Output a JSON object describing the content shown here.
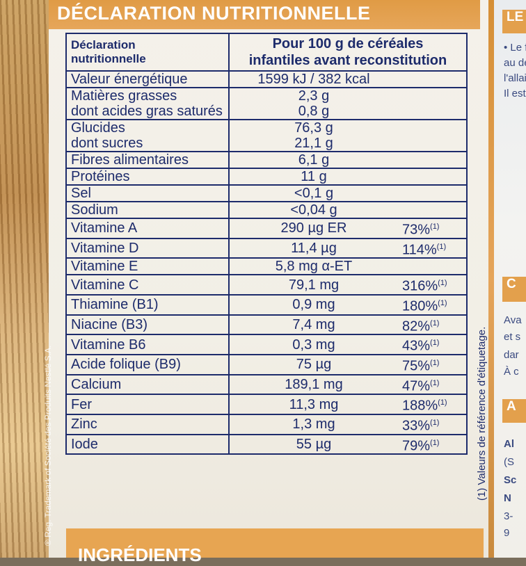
{
  "header": {
    "title": "DÉCLARATION NUTRITIONNELLE"
  },
  "table": {
    "head_left": [
      "Déclaration",
      "nutritionnelle"
    ],
    "head_right": [
      "Pour 100 g de céréales",
      "infantiles avant reconstitution"
    ],
    "rows": [
      {
        "labels": [
          "Valeur énergétique"
        ],
        "values": [
          "1599 kJ / 382 kcal"
        ],
        "pct": ""
      },
      {
        "labels": [
          "Matières grasses",
          "dont acides gras saturés"
        ],
        "values": [
          "2,3 g",
          "0,8 g"
        ],
        "pct": ""
      },
      {
        "labels": [
          "Glucides",
          "dont sucres"
        ],
        "values": [
          "76,3 g",
          "21,1 g"
        ],
        "pct": ""
      },
      {
        "labels": [
          "Fibres alimentaires"
        ],
        "values": [
          "6,1 g"
        ],
        "pct": ""
      },
      {
        "labels": [
          "Protéines"
        ],
        "values": [
          "11 g"
        ],
        "pct": ""
      },
      {
        "labels": [
          "Sel"
        ],
        "values": [
          "<0,1 g"
        ],
        "pct": ""
      },
      {
        "labels": [
          "Sodium"
        ],
        "values": [
          "<0,04 g"
        ],
        "pct": ""
      },
      {
        "labels": [
          "Vitamine A"
        ],
        "values": [
          "290 µg ER"
        ],
        "pct": "73%"
      },
      {
        "labels": [
          "Vitamine D"
        ],
        "values": [
          "11,4 µg"
        ],
        "pct": "114%"
      },
      {
        "labels": [
          "Vitamine E"
        ],
        "values": [
          "5,8 mg α-ET"
        ],
        "pct": ""
      },
      {
        "labels": [
          "Vitamine C"
        ],
        "values": [
          "79,1 mg"
        ],
        "pct": "316%"
      },
      {
        "labels": [
          "Thiamine (B1)"
        ],
        "values": [
          "0,9 mg"
        ],
        "pct": "180%"
      },
      {
        "labels": [
          "Niacine (B3)"
        ],
        "values": [
          "7,4 mg"
        ],
        "pct": "82%"
      },
      {
        "labels": [
          "Vitamine B6"
        ],
        "values": [
          "0,3 mg"
        ],
        "pct": "43%"
      },
      {
        "labels": [
          "Acide folique (B9)"
        ],
        "values": [
          "75 µg"
        ],
        "pct": "75%"
      },
      {
        "labels": [
          "Calcium"
        ],
        "values": [
          "189,1 mg"
        ],
        "pct": "47%"
      },
      {
        "labels": [
          "Fer"
        ],
        "values": [
          "11,3 mg"
        ],
        "pct": "188%"
      },
      {
        "labels": [
          "Zinc"
        ],
        "values": [
          "1,3 mg"
        ],
        "pct": "33%"
      },
      {
        "labels": [
          "Iode"
        ],
        "values": [
          "55 µg"
        ],
        "pct": "79%"
      }
    ],
    "ref_mark": "(1)"
  },
  "footnote": "(1) Valeurs de référence d'étiquetage.",
  "side_reg": "® Reg. Trademark of Société des Produits Nestlé S.A.",
  "bottom": {
    "title": "INGRÉDIENTS"
  },
  "right_panel": {
    "top_label": "LE",
    "lines": [
      "• Le f",
      "au dé",
      "l'allai",
      "Il est"
    ],
    "mid_label": "C",
    "mid_lines": [
      "Ava",
      "et s",
      "dar",
      "À c"
    ],
    "low_label": "A",
    "low_lines": [
      "Al",
      "(S",
      "Sc",
      "N",
      "3-",
      "9"
    ]
  },
  "colors": {
    "orange": "#e09b45",
    "navy": "#1d2b6b",
    "panel": "#f3f0e8"
  }
}
